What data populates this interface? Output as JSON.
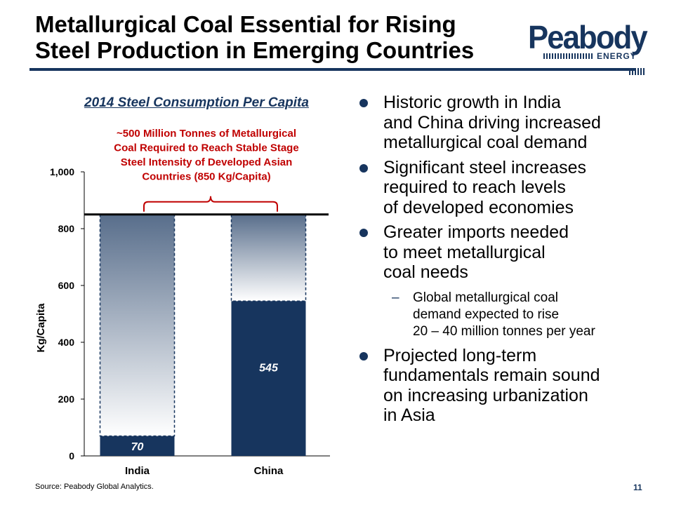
{
  "slide": {
    "title_line1": "Metallurgical Coal Essential for Rising",
    "title_line2": "Steel Production in Emerging Countries",
    "source": "Source: Peabody Global Analytics.",
    "page_number": "11"
  },
  "logo": {
    "word": "Peabody",
    "sub": "ENERGY",
    "color": "#17355e"
  },
  "bullets": [
    {
      "lines": [
        "Historic growth in India",
        "and China driving increased",
        "metallurgical coal demand"
      ]
    },
    {
      "lines": [
        "Significant steel increases",
        "required to reach levels",
        "of developed economies"
      ]
    },
    {
      "lines": [
        "Greater imports needed",
        "to meet metallurgical",
        "coal needs"
      ],
      "sub": {
        "lines": [
          "Global metallurgical coal",
          "demand expected to rise",
          "20 – 40 million tonnes per year"
        ]
      }
    },
    {
      "lines": [
        "Projected long-term",
        "fundamentals remain sound",
        "on increasing urbanization",
        "in Asia"
      ]
    }
  ],
  "chart_data": {
    "type": "bar",
    "title": "2014 Steel Consumption Per Capita",
    "ylabel": "Kg/Capita",
    "ylim": [
      0,
      1000
    ],
    "yticks": [
      0,
      200,
      400,
      600,
      800,
      1000
    ],
    "ytick_labels": [
      "0",
      "200",
      "400",
      "600",
      "800",
      "1,000"
    ],
    "categories": [
      "India",
      "China"
    ],
    "series": [
      {
        "values": [
          70,
          545
        ],
        "color": "#17355e"
      }
    ],
    "data_labels": [
      "70",
      "545"
    ],
    "target_line": {
      "value": 850
    },
    "annotation": {
      "lines": [
        "~500 Million Tonnes of Metallurgical",
        "Coal Required to Reach Stable Stage",
        "Steel Intensity of Developed  Asian",
        "Countries (850 Kg/Capita)"
      ],
      "color": "#c00000"
    },
    "grid": false,
    "legend": "none"
  }
}
